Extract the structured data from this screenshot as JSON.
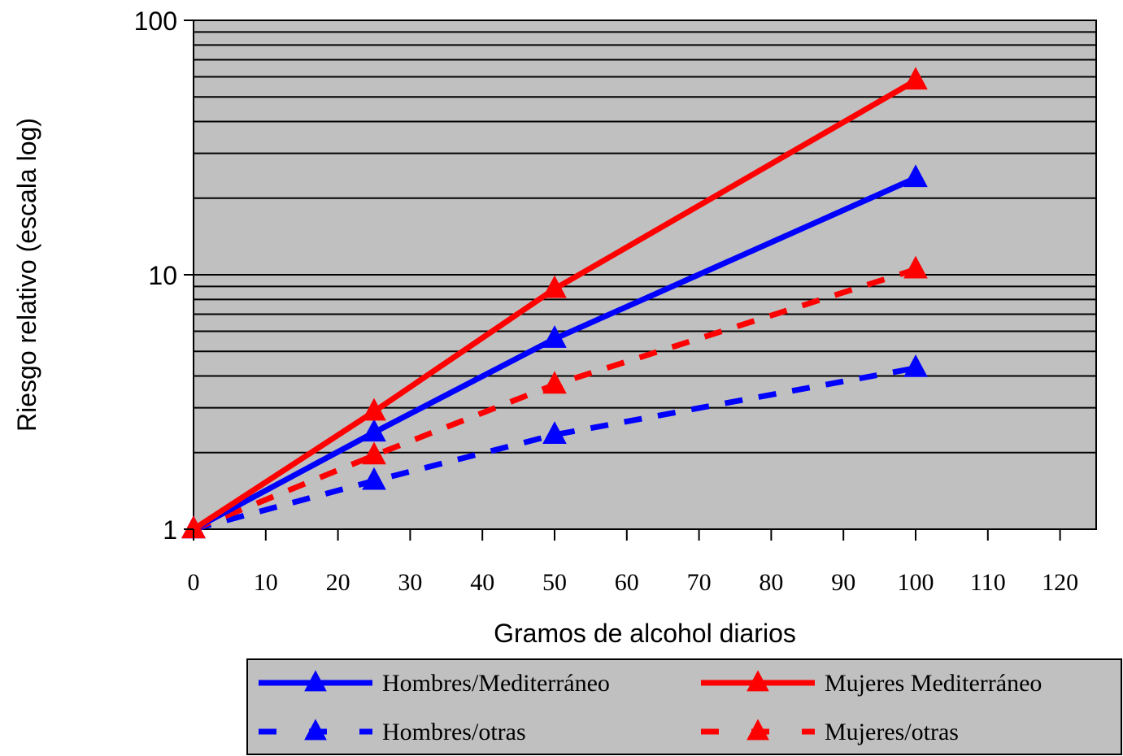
{
  "chart_data": {
    "type": "line",
    "title": "",
    "xlabel": "Gramos de alcohol diarios",
    "ylabel": "Riesgo relativo (escala log)",
    "x_ticks": [
      0,
      10,
      20,
      30,
      40,
      50,
      60,
      70,
      80,
      90,
      100,
      110,
      120
    ],
    "y_ticks": [
      1,
      10,
      100
    ],
    "y_tick_labels": [
      "1",
      "10",
      "100"
    ],
    "xlim": [
      0,
      125
    ],
    "ylim": [
      1,
      100
    ],
    "y_scale": "log",
    "grid": true,
    "plot_background": "#c0c0c0",
    "legend_placement": "bottom",
    "x": [
      0,
      25,
      50,
      100
    ],
    "series": [
      {
        "name": "Hombres/Mediterráneo",
        "values": [
          1,
          2.4,
          5.6,
          24
        ],
        "color": "#0000ff",
        "style": "solid",
        "marker": "triangle"
      },
      {
        "name": "Mujeres Mediterráneo",
        "values": [
          1,
          2.9,
          8.8,
          58
        ],
        "color": "#ff0000",
        "style": "solid",
        "marker": "triangle"
      },
      {
        "name": "Hombres/otras",
        "values": [
          1,
          1.55,
          2.35,
          4.3
        ],
        "color": "#0000ff",
        "style": "dashed",
        "marker": "triangle"
      },
      {
        "name": "Mujeres/otras",
        "values": [
          1,
          1.95,
          3.7,
          10.5
        ],
        "color": "#ff0000",
        "style": "dashed",
        "marker": "triangle"
      }
    ]
  }
}
